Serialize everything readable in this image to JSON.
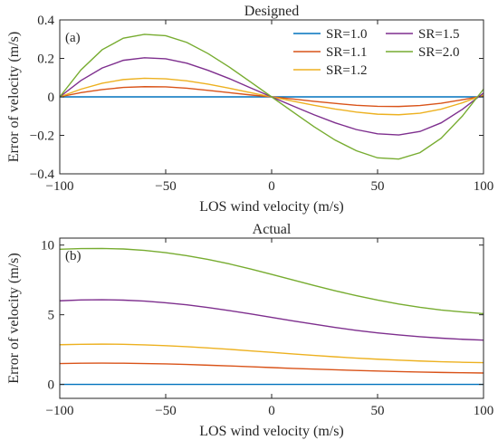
{
  "chart_data": [
    {
      "type": "line",
      "title": "Designed",
      "panel_label": "(a)",
      "xlabel": "LOS wind velocity (m/s)",
      "ylabel": "Error of velocity (m/s)",
      "xlim": [
        -100,
        100
      ],
      "ylim": [
        -0.4,
        0.4
      ],
      "xticks": [
        -100,
        -50,
        0,
        50,
        100
      ],
      "xtick_labels": [
        "−100",
        "−50",
        "0",
        "50",
        "100"
      ],
      "yticks": [
        -0.4,
        -0.2,
        0,
        0.2,
        0.4
      ],
      "ytick_labels": [
        "−0.4",
        "−0.2",
        "0",
        "0.2",
        "0.4"
      ],
      "grid": false,
      "legend_position": "top-right",
      "x": [
        -100,
        -90,
        -80,
        -70,
        -60,
        -50,
        -40,
        -30,
        -20,
        -10,
        0,
        10,
        20,
        30,
        40,
        50,
        60,
        70,
        80,
        90,
        100
      ],
      "series": [
        {
          "name": "SR=1.0",
          "color": "#0072BD",
          "y": [
            0,
            0,
            0,
            0,
            0,
            0,
            0,
            0,
            0,
            0,
            0,
            0,
            0,
            0,
            0,
            0,
            0,
            0,
            0,
            0,
            0
          ]
        },
        {
          "name": "SR=1.1",
          "color": "#D95319",
          "y": [
            0,
            0.022,
            0.038,
            0.049,
            0.053,
            0.052,
            0.045,
            0.034,
            0.022,
            0.01,
            0,
            -0.011,
            -0.023,
            -0.034,
            -0.044,
            -0.049,
            -0.05,
            -0.045,
            -0.033,
            -0.015,
            0.005
          ]
        },
        {
          "name": "SR=1.2",
          "color": "#EDB120",
          "y": [
            0,
            0.04,
            0.071,
            0.09,
            0.097,
            0.094,
            0.083,
            0.066,
            0.045,
            0.022,
            0,
            -0.022,
            -0.044,
            -0.063,
            -0.079,
            -0.09,
            -0.093,
            -0.085,
            -0.064,
            -0.031,
            0.01
          ]
        },
        {
          "name": "SR=1.5",
          "color": "#7E2F8E",
          "y": [
            0,
            0.085,
            0.15,
            0.19,
            0.203,
            0.198,
            0.175,
            0.138,
            0.095,
            0.047,
            0,
            -0.047,
            -0.093,
            -0.135,
            -0.17,
            -0.192,
            -0.198,
            -0.18,
            -0.135,
            -0.065,
            0.02
          ]
        },
        {
          "name": "SR=2.0",
          "color": "#77AC30",
          "y": [
            0,
            0.14,
            0.245,
            0.305,
            0.325,
            0.318,
            0.283,
            0.225,
            0.155,
            0.078,
            0,
            -0.078,
            -0.155,
            -0.225,
            -0.28,
            -0.317,
            -0.323,
            -0.29,
            -0.215,
            -0.1,
            0.04
          ]
        }
      ]
    },
    {
      "type": "line",
      "title": "Actual",
      "panel_label": "(b)",
      "xlabel": "LOS wind velocity (m/s)",
      "ylabel": "Error of velocity (m/s)",
      "xlim": [
        -100,
        100
      ],
      "ylim": [
        -1,
        10.5
      ],
      "xticks": [
        -100,
        -50,
        0,
        50,
        100
      ],
      "xtick_labels": [
        "−100",
        "−50",
        "0",
        "50",
        "100"
      ],
      "yticks": [
        0,
        5,
        10
      ],
      "ytick_labels": [
        "0",
        "5",
        "10"
      ],
      "grid": false,
      "x": [
        -100,
        -90,
        -80,
        -70,
        -60,
        -50,
        -40,
        -30,
        -20,
        -10,
        0,
        10,
        20,
        30,
        40,
        50,
        60,
        70,
        80,
        90,
        100
      ],
      "series": [
        {
          "color": "#0072BD",
          "y": [
            0,
            0,
            0,
            0,
            0,
            0,
            0,
            0,
            0,
            0,
            0,
            0,
            0,
            0,
            0,
            0,
            0,
            0,
            0,
            0,
            0
          ]
        },
        {
          "color": "#D95319",
          "y": [
            1.5,
            1.52,
            1.53,
            1.52,
            1.5,
            1.47,
            1.43,
            1.38,
            1.33,
            1.27,
            1.21,
            1.15,
            1.1,
            1.05,
            1.0,
            0.96,
            0.92,
            0.89,
            0.86,
            0.84,
            0.82
          ]
        },
        {
          "color": "#EDB120",
          "y": [
            2.85,
            2.88,
            2.89,
            2.88,
            2.84,
            2.78,
            2.71,
            2.62,
            2.52,
            2.41,
            2.3,
            2.19,
            2.08,
            1.98,
            1.89,
            1.81,
            1.74,
            1.68,
            1.63,
            1.59,
            1.56
          ]
        },
        {
          "color": "#7E2F8E",
          "y": [
            6.0,
            6.06,
            6.08,
            6.05,
            5.98,
            5.86,
            5.71,
            5.52,
            5.3,
            5.06,
            4.81,
            4.56,
            4.32,
            4.09,
            3.88,
            3.7,
            3.55,
            3.42,
            3.32,
            3.24,
            3.18
          ]
        },
        {
          "color": "#77AC30",
          "y": [
            9.7,
            9.75,
            9.76,
            9.72,
            9.62,
            9.46,
            9.24,
            8.97,
            8.65,
            8.29,
            7.9,
            7.5,
            7.1,
            6.72,
            6.37,
            6.05,
            5.77,
            5.53,
            5.34,
            5.2,
            5.08
          ]
        }
      ]
    }
  ]
}
